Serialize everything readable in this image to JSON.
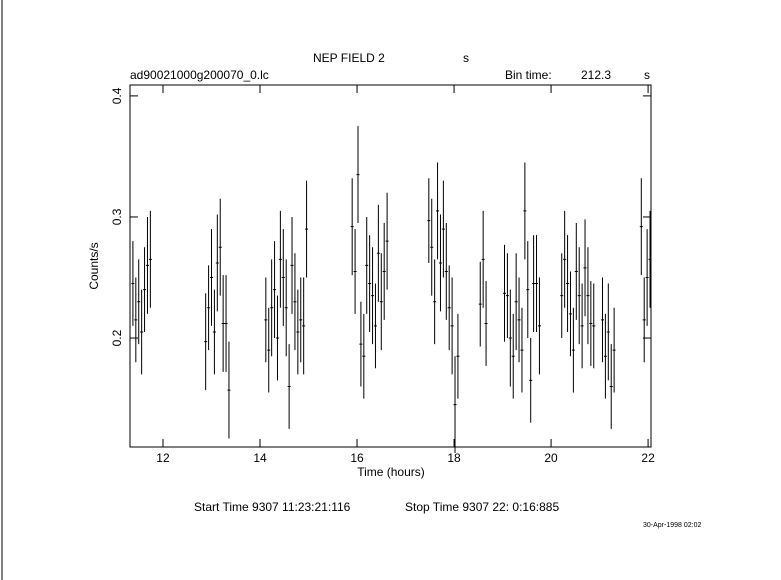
{
  "chart_data": {
    "type": "errorbar",
    "title": "NEP FIELD 2",
    "title_unit": "s",
    "file_name": "ad90021000g200070_0.lc",
    "bin_time_label": "Bin time:",
    "bin_time": "212.3",
    "bin_time_unit": "s",
    "xlabel": "Time (hours)",
    "ylabel": "Counts/s",
    "start_time": "Start Time  9307 11:23:21:116",
    "stop_time": "Stop Time  9307 22: 0:16:885",
    "timestamp": "30-Apr-1998 02:02",
    "xlim": [
      11.32,
      22.06
    ],
    "ylim": [
      0.11,
      0.409
    ],
    "xticks": [
      12,
      14,
      16,
      18,
      20,
      22
    ],
    "yticks": [
      0.2,
      0.3,
      0.4
    ],
    "color": "#000000",
    "series": [
      {
        "x": [
          11.38,
          11.44,
          11.5,
          11.56,
          11.62,
          11.68,
          11.74,
          12.88,
          12.94,
          13.0,
          13.06,
          13.12,
          13.18,
          13.24,
          13.3,
          13.36,
          14.12,
          14.18,
          14.24,
          14.3,
          14.36,
          14.42,
          14.48,
          14.54,
          14.6,
          14.66,
          14.72,
          14.78,
          14.84,
          14.9,
          14.96,
          15.9,
          15.96,
          16.02,
          16.08,
          16.14,
          16.2,
          16.26,
          16.32,
          16.38,
          16.44,
          16.5,
          16.56,
          16.62,
          17.48,
          17.54,
          17.6,
          17.66,
          17.72,
          17.78,
          17.84,
          17.9,
          17.96,
          18.02,
          18.08,
          18.54,
          18.6,
          18.66,
          19.04,
          19.1,
          19.16,
          19.22,
          19.28,
          19.34,
          19.4,
          19.46,
          19.52,
          19.58,
          19.64,
          19.7,
          19.76,
          20.22,
          20.28,
          20.34,
          20.4,
          20.46,
          20.52,
          20.58,
          20.64,
          20.7,
          20.76,
          20.82,
          20.88,
          21.06,
          21.12,
          21.18,
          21.24,
          21.3,
          21.86,
          21.92,
          21.98,
          22.04
        ],
        "values": [
          0.245,
          0.215,
          0.23,
          0.205,
          0.24,
          0.26,
          0.265,
          0.197,
          0.225,
          0.25,
          0.205,
          0.262,
          0.275,
          0.212,
          0.212,
          0.157,
          0.215,
          0.19,
          0.225,
          0.24,
          0.2,
          0.265,
          0.25,
          0.225,
          0.16,
          0.26,
          0.23,
          0.205,
          0.215,
          0.21,
          0.29,
          0.292,
          0.255,
          0.335,
          0.195,
          0.185,
          0.26,
          0.245,
          0.235,
          0.21,
          0.27,
          0.23,
          0.255,
          0.28,
          0.297,
          0.275,
          0.23,
          0.305,
          0.262,
          0.29,
          0.255,
          0.225,
          0.21,
          0.145,
          0.185,
          0.228,
          0.265,
          0.212,
          0.237,
          0.235,
          0.2,
          0.185,
          0.23,
          0.215,
          0.19,
          0.305,
          0.24,
          0.165,
          0.245,
          0.245,
          0.21,
          0.235,
          0.265,
          0.245,
          0.22,
          0.19,
          0.255,
          0.235,
          0.21,
          0.258,
          0.235,
          0.212,
          0.21,
          0.215,
          0.185,
          0.205,
          0.16,
          0.19,
          0.292,
          0.215,
          0.25,
          0.265
        ],
        "errors": [
          0.035,
          0.035,
          0.035,
          0.035,
          0.035,
          0.04,
          0.04,
          0.04,
          0.035,
          0.04,
          0.035,
          0.04,
          0.04,
          0.04,
          0.04,
          0.04,
          0.035,
          0.035,
          0.04,
          0.04,
          0.035,
          0.04,
          0.04,
          0.04,
          0.035,
          0.04,
          0.04,
          0.035,
          0.035,
          0.04,
          0.04,
          0.04,
          0.035,
          0.04,
          0.035,
          0.035,
          0.04,
          0.04,
          0.04,
          0.035,
          0.04,
          0.04,
          0.04,
          0.04,
          0.035,
          0.04,
          0.035,
          0.04,
          0.04,
          0.04,
          0.04,
          0.035,
          0.04,
          0.04,
          0.035,
          0.035,
          0.04,
          0.035,
          0.04,
          0.035,
          0.04,
          0.035,
          0.04,
          0.035,
          0.035,
          0.04,
          0.04,
          0.035,
          0.04,
          0.04,
          0.04,
          0.035,
          0.04,
          0.04,
          0.035,
          0.035,
          0.04,
          0.04,
          0.035,
          0.04,
          0.04,
          0.035,
          0.035,
          0.035,
          0.035,
          0.04,
          0.035,
          0.035,
          0.04,
          0.035,
          0.04,
          0.04
        ]
      }
    ]
  }
}
